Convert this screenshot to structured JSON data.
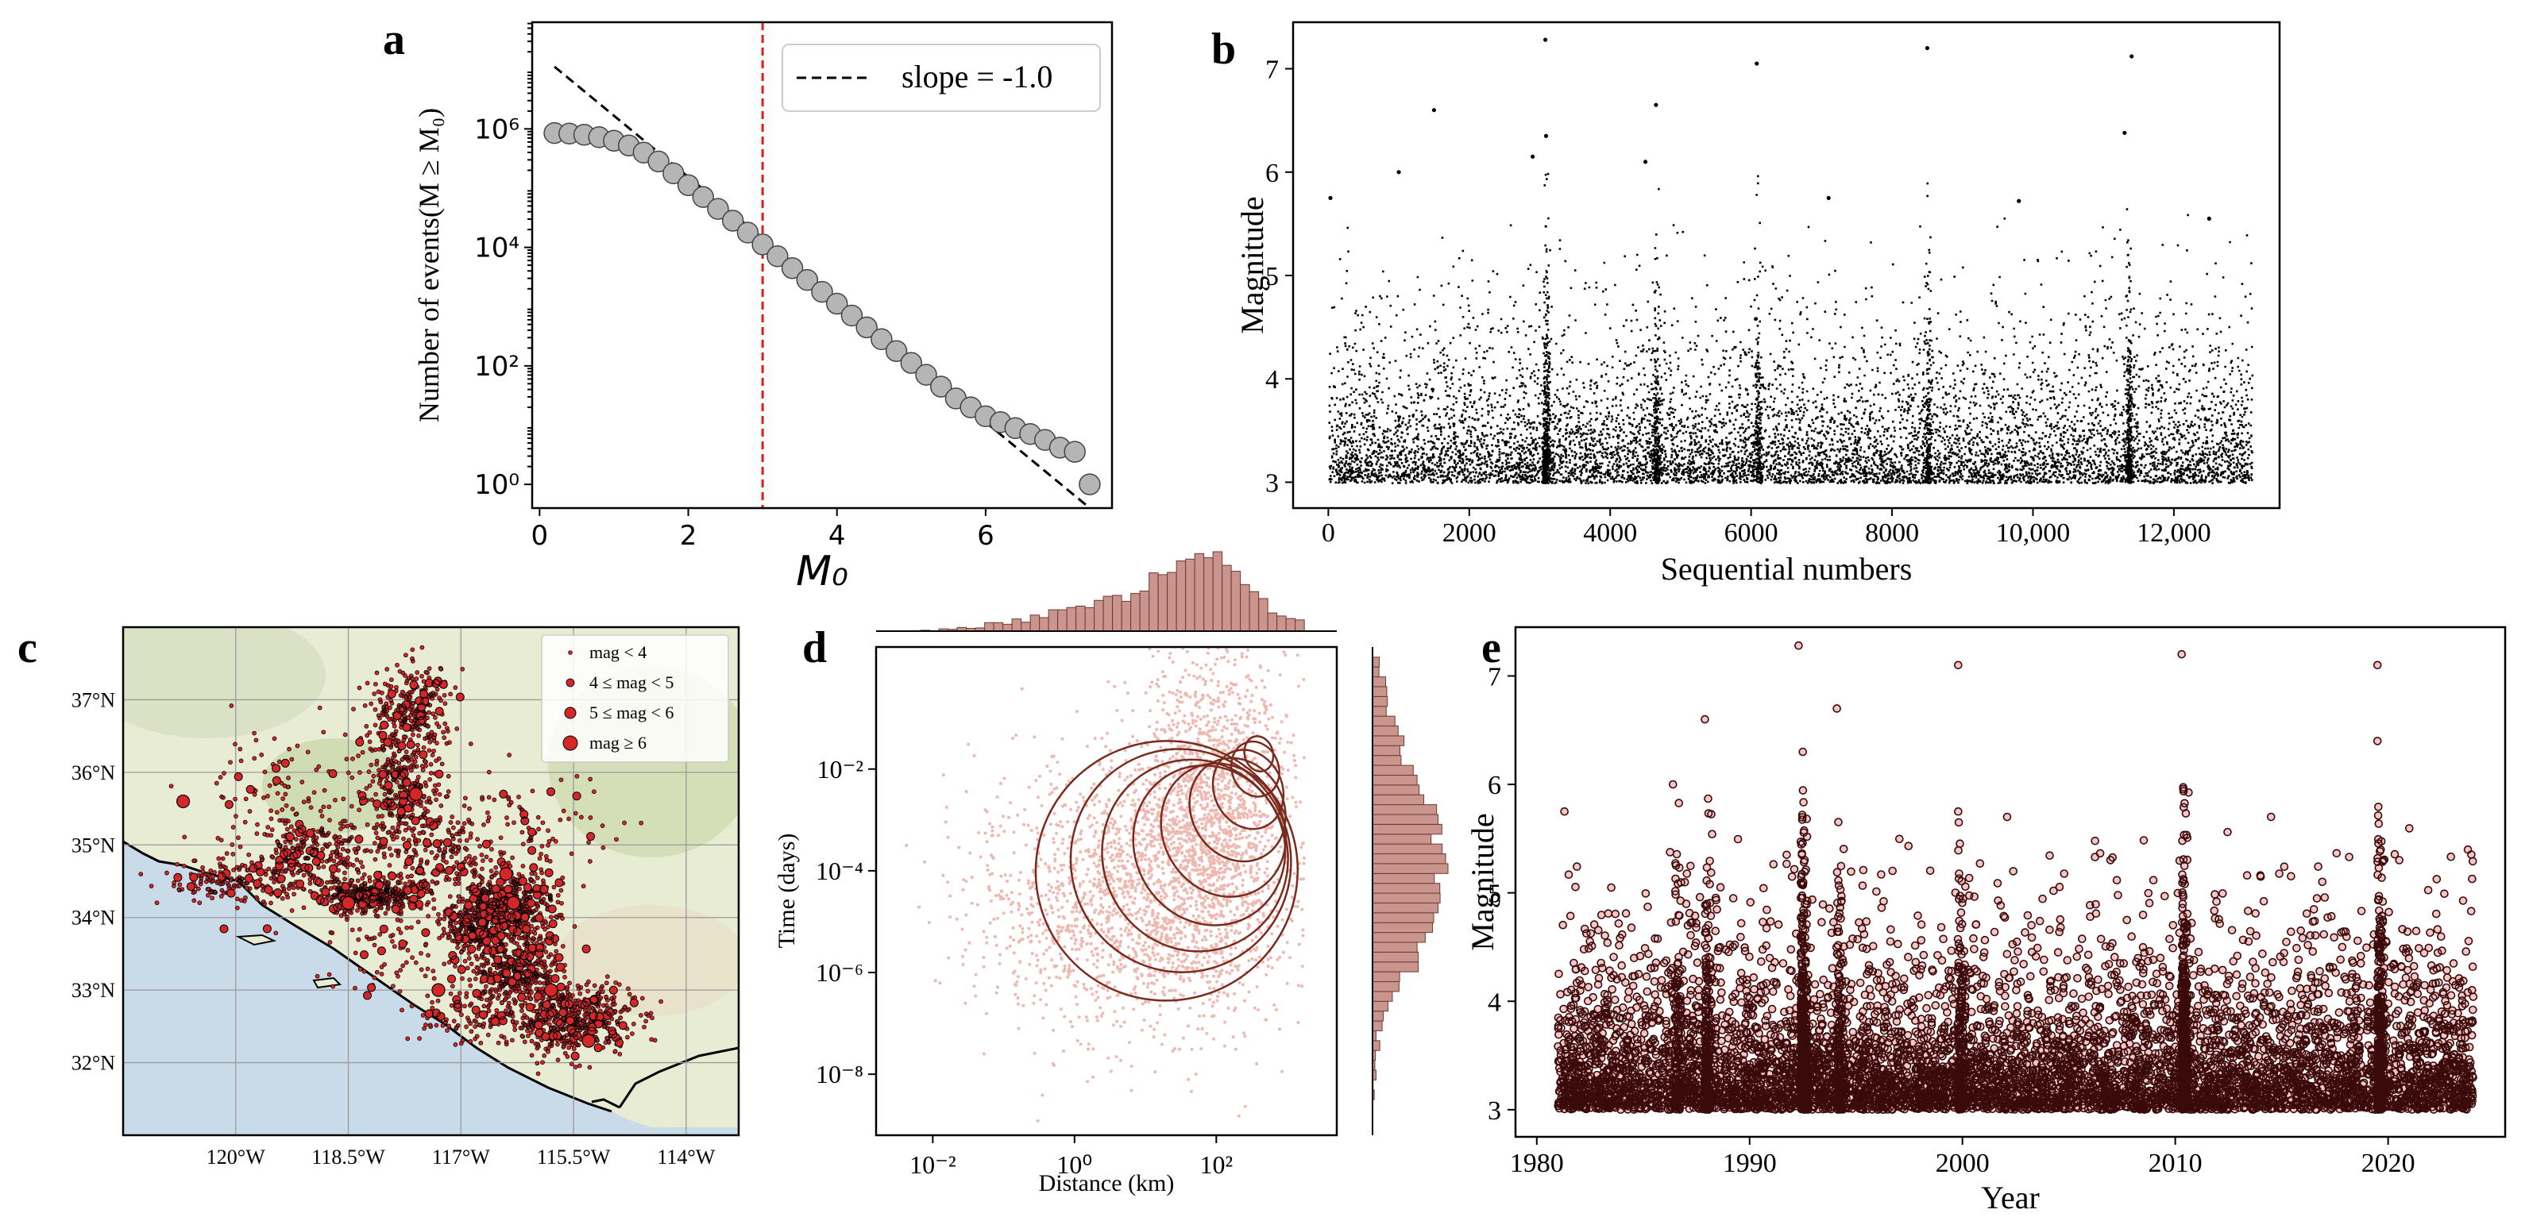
{
  "panel_labels": [
    "a",
    "b",
    "c",
    "d",
    "e"
  ],
  "chart_data": [
    {
      "panel": "a",
      "type": "scatter",
      "xlabel": "M₀",
      "ylabel": "Number of events(M ≥ M₀)",
      "xlim": [
        -0.1,
        7.7
      ],
      "ylim_log10": [
        -0.4,
        7.8
      ],
      "yscale": "log",
      "x_ticks": [
        "0",
        "2",
        "4",
        "6"
      ],
      "y_ticks": [
        "10⁰",
        "10²",
        "10⁴",
        "10⁶"
      ],
      "legend": {
        "position": "top-right",
        "label": "slope = -1.0"
      },
      "reference_line": {
        "label": "slope = -1.0",
        "style": "dashed",
        "color": "#000000",
        "x": [
          0.2,
          7.45
        ],
        "log10_y": [
          7.05,
          -0.45
        ]
      },
      "vline": {
        "x": 3.0,
        "color": "#e41a1c",
        "style": "dashed"
      },
      "x": [
        0.2,
        0.4,
        0.6,
        0.8,
        1.0,
        1.2,
        1.4,
        1.6,
        1.8,
        2.0,
        2.2,
        2.4,
        2.6,
        2.8,
        3.0,
        3.2,
        3.4,
        3.6,
        3.8,
        4.0,
        4.2,
        4.4,
        4.6,
        4.8,
        5.0,
        5.2,
        5.4,
        5.6,
        5.8,
        6.0,
        6.2,
        6.4,
        6.6,
        6.8,
        7.0,
        7.2,
        7.4
      ],
      "log10_y": [
        5.93,
        5.92,
        5.9,
        5.86,
        5.8,
        5.72,
        5.6,
        5.45,
        5.25,
        5.05,
        4.85,
        4.65,
        4.45,
        4.25,
        4.05,
        3.85,
        3.65,
        3.45,
        3.25,
        3.05,
        2.85,
        2.65,
        2.45,
        2.25,
        2.05,
        1.85,
        1.65,
        1.45,
        1.3,
        1.15,
        1.05,
        0.95,
        0.85,
        0.75,
        0.62,
        0.55,
        0.0
      ]
    },
    {
      "panel": "b",
      "type": "scatter",
      "xlabel": "Sequential numbers",
      "ylabel": "Magnitude",
      "xlim": [
        -500,
        13500
      ],
      "ylim": [
        2.75,
        7.45
      ],
      "x_ticks": [
        "0",
        "2000",
        "4000",
        "6000",
        "8000",
        "10,000",
        "12,000"
      ],
      "y_ticks": [
        "3",
        "4",
        "5",
        "6",
        "7"
      ],
      "n_points": 13100,
      "large_events": [
        [
          30,
          5.75
        ],
        [
          1000,
          6.0
        ],
        [
          1500,
          6.6
        ],
        [
          2900,
          6.15
        ],
        [
          3080,
          7.28
        ],
        [
          3090,
          6.35
        ],
        [
          4650,
          6.65
        ],
        [
          6080,
          7.05
        ],
        [
          8500,
          7.2
        ],
        [
          11300,
          6.38
        ],
        [
          11400,
          7.12
        ],
        [
          4500,
          6.1
        ],
        [
          9800,
          5.72
        ],
        [
          7100,
          5.75
        ],
        [
          12500,
          5.55
        ]
      ]
    },
    {
      "panel": "c",
      "type": "scatter",
      "legend": {
        "position": "top-right",
        "labels": [
          "mag < 4",
          "4 ≤ mag < 5",
          "5 ≤ mag < 6",
          "mag ≥ 6"
        ]
      },
      "x_ticks": [
        "120°W",
        "118.5°W",
        "117°W",
        "115.5°W",
        "114°W"
      ],
      "y_ticks": [
        "32°N",
        "33°N",
        "34°N",
        "35°N",
        "36°N",
        "37°N"
      ],
      "xlim": [
        -121.5,
        -113.3
      ],
      "ylim": [
        31.0,
        38.0
      ],
      "marker_color": "#d62728"
    },
    {
      "panel": "d",
      "type": "scatter",
      "xlabel": "Distance (km)",
      "ylabel": "Time (days)",
      "xscale": "log",
      "yscale": "log",
      "xlim_log10": [
        -2.8,
        3.7
      ],
      "ylim_log10": [
        -9.2,
        0.4
      ],
      "x_ticks": [
        "10⁻²",
        "10⁰",
        "10²"
      ],
      "y_ticks": [
        "10⁻⁸",
        "10⁻⁶",
        "10⁻⁴",
        "10⁻²"
      ],
      "point_color": "#e8a89c",
      "contour_color": "#7b2a1e",
      "hist_color": "#c9958c"
    },
    {
      "panel": "e",
      "type": "scatter",
      "xlabel": "Year",
      "ylabel": "Magnitude",
      "xlim": [
        1979.0,
        2025.5
      ],
      "ylim": [
        2.75,
        7.45
      ],
      "x_ticks": [
        "1980",
        "1990",
        "2000",
        "2010",
        "2020"
      ],
      "y_ticks": [
        "3",
        "4",
        "5",
        "6",
        "7"
      ],
      "marker_edge": "#3a0a0a",
      "marker_face": "#f4c6c6",
      "large_events": [
        [
          1981.3,
          5.75
        ],
        [
          1986.4,
          6.0
        ],
        [
          1987.9,
          6.6
        ],
        [
          1992.3,
          7.28
        ],
        [
          1992.5,
          6.3
        ],
        [
          1994.1,
          6.7
        ],
        [
          1999.8,
          7.1
        ],
        [
          2010.3,
          7.2
        ],
        [
          2019.5,
          7.1
        ],
        [
          2019.5,
          6.4
        ],
        [
          1999.8,
          5.75
        ],
        [
          2002.1,
          5.7
        ],
        [
          2014.5,
          5.7
        ]
      ]
    }
  ]
}
